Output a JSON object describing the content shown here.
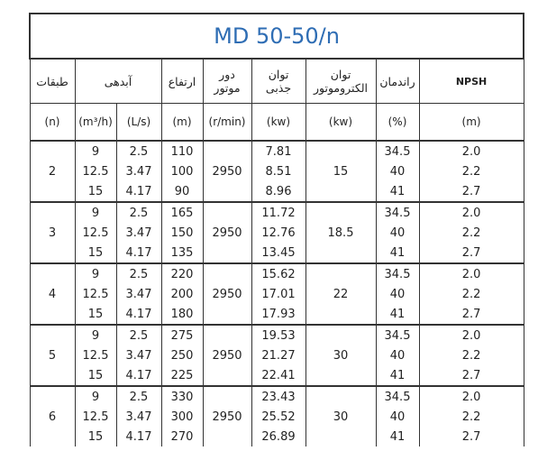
{
  "title": "MD  50-50/n",
  "headers": [
    "طبقات",
    "آبدهی",
    "ارتفاع",
    "دور موتور",
    "توان جذبی",
    "توان الکتروموتور",
    "راندمان",
    "NPSH"
  ],
  "units": [
    "(n)",
    "(m³/h)",
    "(L/s)",
    "(m)",
    "(r/min)",
    "(kw)",
    "(kw)",
    "(%)",
    "(m)"
  ],
  "groups": [
    {
      "stage": "2",
      "rpm": "2950",
      "motor": "15",
      "rows": [
        [
          "9",
          "2.5",
          "110",
          "7.81",
          "34.5",
          "2.0"
        ],
        [
          "12.5",
          "3.47",
          "100",
          "8.51",
          "40",
          "2.2"
        ],
        [
          "15",
          "4.17",
          "90",
          "8.96",
          "41",
          "2.7"
        ]
      ]
    },
    {
      "stage": "3",
      "rpm": "2950",
      "motor": "18.5",
      "rows": [
        [
          "9",
          "2.5",
          "165",
          "11.72",
          "34.5",
          "2.0"
        ],
        [
          "12.5",
          "3.47",
          "150",
          "12.76",
          "40",
          "2.2"
        ],
        [
          "15",
          "4.17",
          "135",
          "13.45",
          "41",
          "2.7"
        ]
      ]
    },
    {
      "stage": "4",
      "rpm": "2950",
      "motor": "22",
      "rows": [
        [
          "9",
          "2.5",
          "220",
          "15.62",
          "34.5",
          "2.0"
        ],
        [
          "12.5",
          "3.47",
          "200",
          "17.01",
          "40",
          "2.2"
        ],
        [
          "15",
          "4.17",
          "180",
          "17.93",
          "41",
          "2.7"
        ]
      ]
    },
    {
      "stage": "5",
      "rpm": "2950",
      "motor": "30",
      "rows": [
        [
          "9",
          "2.5",
          "275",
          "19.53",
          "34.5",
          "2.0"
        ],
        [
          "12.5",
          "3.47",
          "250",
          "21.27",
          "40",
          "2.2"
        ],
        [
          "15",
          "4.17",
          "225",
          "22.41",
          "41",
          "2.7"
        ]
      ]
    },
    {
      "stage": "6",
      "rpm": "2950",
      "motor": "30",
      "rows": [
        [
          "9",
          "2.5",
          "330",
          "23.43",
          "34.5",
          "2.0"
        ],
        [
          "12.5",
          "3.47",
          "300",
          "25.52",
          "40",
          "2.2"
        ],
        [
          "15",
          "4.17",
          "270",
          "26.89",
          "41",
          "2.7"
        ]
      ]
    }
  ]
}
